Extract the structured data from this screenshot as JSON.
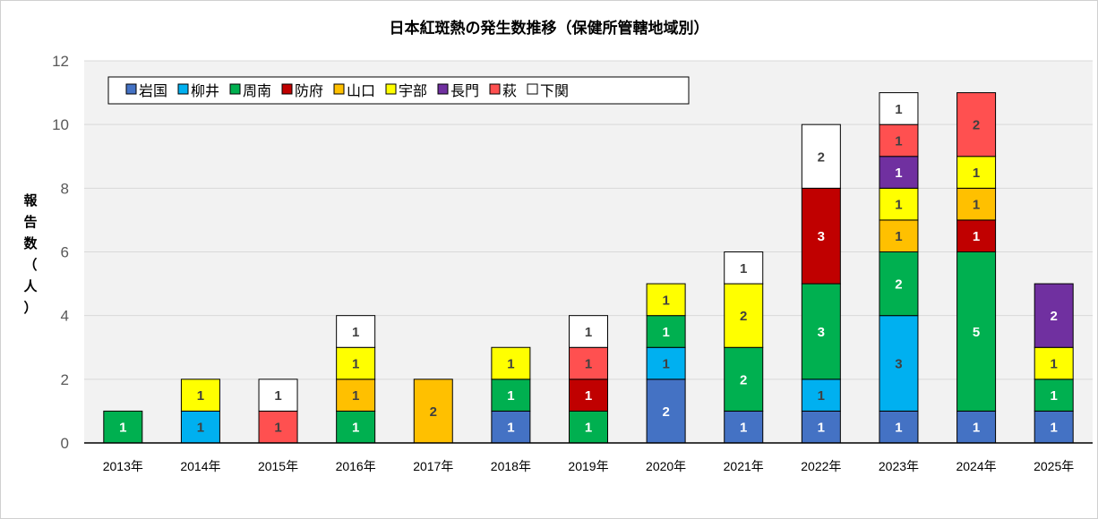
{
  "chart_data": {
    "type": "bar",
    "stacked": true,
    "title": "日本紅斑熱の発生数推移（保健所管轄地域別）",
    "ylabel": [
      "報",
      "告",
      "数",
      "（",
      "人",
      "）"
    ],
    "xlabel": "",
    "ylim": [
      0,
      12
    ],
    "yticks": [
      "0",
      "2",
      "4",
      "6",
      "8",
      "10",
      "12"
    ],
    "ytick_values": [
      0,
      2,
      4,
      6,
      8,
      10,
      12
    ],
    "grid": true,
    "legend_position": "top-left",
    "categories": [
      "2013年",
      "2014年",
      "2015年",
      "2016年",
      "2017年",
      "2018年",
      "2019年",
      "2020年",
      "2021年",
      "2022年",
      "2023年",
      "2024年",
      "2025年"
    ],
    "series": [
      {
        "name": "岩国",
        "color": "#4472C4",
        "label_color": "#ffffff",
        "values": [
          0,
          0,
          0,
          0,
          0,
          1,
          0,
          2,
          1,
          1,
          1,
          1,
          1
        ]
      },
      {
        "name": "柳井",
        "color": "#00B0F0",
        "label_color": "#404040",
        "values": [
          0,
          1,
          0,
          0,
          0,
          0,
          0,
          1,
          0,
          1,
          3,
          0,
          0
        ]
      },
      {
        "name": "周南",
        "color": "#00B050",
        "label_color": "#ffffff",
        "values": [
          1,
          0,
          0,
          1,
          0,
          1,
          1,
          1,
          2,
          3,
          2,
          5,
          1
        ]
      },
      {
        "name": "防府",
        "color": "#C00000",
        "label_color": "#ffffff",
        "values": [
          0,
          0,
          0,
          0,
          0,
          0,
          1,
          0,
          0,
          3,
          0,
          1,
          0
        ]
      },
      {
        "name": "山口",
        "color": "#FFC000",
        "label_color": "#404040",
        "values": [
          0,
          0,
          0,
          1,
          2,
          0,
          0,
          0,
          0,
          0,
          1,
          1,
          0
        ]
      },
      {
        "name": "宇部",
        "color": "#FFFF00",
        "label_color": "#404040",
        "values": [
          0,
          1,
          0,
          1,
          0,
          1,
          0,
          1,
          2,
          0,
          1,
          1,
          1
        ]
      },
      {
        "name": "長門",
        "color": "#7030A0",
        "label_color": "#ffffff",
        "values": [
          0,
          0,
          0,
          0,
          0,
          0,
          0,
          0,
          0,
          0,
          1,
          0,
          2
        ]
      },
      {
        "name": "萩",
        "color": "#FF5050",
        "label_color": "#404040",
        "values": [
          0,
          0,
          1,
          0,
          0,
          0,
          1,
          0,
          0,
          0,
          1,
          2,
          0
        ]
      },
      {
        "name": "下関",
        "color": "#FFFFFF",
        "label_color": "#404040",
        "values": [
          0,
          0,
          1,
          1,
          0,
          0,
          1,
          0,
          1,
          2,
          1,
          0,
          0
        ]
      }
    ]
  }
}
